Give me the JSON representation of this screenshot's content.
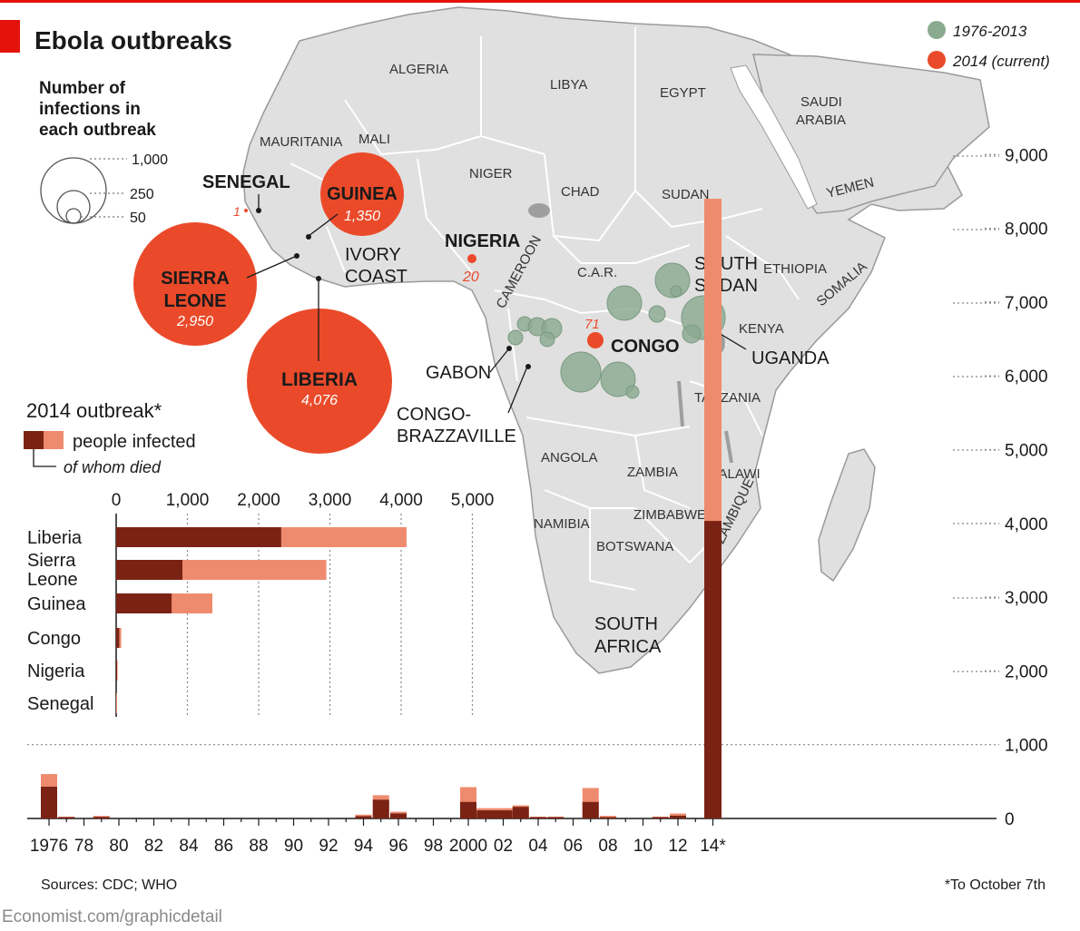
{
  "title": "Ebola outbreaks",
  "legend": {
    "historic_label": "1976-2013",
    "current_label": "2014 (current)",
    "historic_color": "#8aaa90",
    "current_color": "#ea4a2a"
  },
  "size_key": {
    "heading": [
      "Number of",
      "infections in",
      "each outbreak"
    ],
    "values": [
      "1,000",
      "250",
      "50"
    ]
  },
  "map_labels": {
    "regions": [
      "ALGERIA",
      "LIBYA",
      "EGYPT",
      "SAUDI",
      "ARABIA",
      "MAURITANIA",
      "MALI",
      "NIGER",
      "CHAD",
      "SUDAN",
      "YEMEN",
      "ETHIOPIA",
      "SOMALIA",
      "C.A.R.",
      "CAMEROON",
      "KENYA",
      "TANZANIA",
      "ANGOLA",
      "ZAMBIA",
      "MALAWI",
      "MOZAMBIQUE",
      "NAMIBIA",
      "ZIMBABWE",
      "BOTSWANA"
    ],
    "ivory_coast": [
      "IVORY",
      "COAST"
    ],
    "south_africa": [
      "SOUTH",
      "AFRICA"
    ],
    "south_sudan": [
      "SOUTH",
      "SUDAN"
    ],
    "uganda": "UGANDA",
    "gabon": "GABON",
    "congo_brazzaville": [
      "CONGO-",
      "BRAZZAVILLE"
    ]
  },
  "outbreaks_2014": [
    {
      "name": "GUINEA",
      "count": "1,350"
    },
    {
      "name_lines": [
        "SIERRA",
        "LEONE"
      ],
      "count": "2,950"
    },
    {
      "name": "LIBERIA",
      "count": "4,076"
    },
    {
      "name": "NIGERIA",
      "count": "20"
    },
    {
      "name": "CONGO",
      "count": "71"
    },
    {
      "name": "SENEGAL",
      "count": "1"
    }
  ],
  "bar_legend": {
    "heading": "2014 outbreak*",
    "infected": "people infected",
    "died": "of whom died"
  },
  "chart_data": [
    {
      "type": "bar",
      "orientation": "horizontal",
      "title": "2014 outbreak*",
      "categories": [
        "Liberia",
        "Sierra Leone",
        "Guinea",
        "Congo",
        "Nigeria",
        "Senegal"
      ],
      "category_lines": [
        [
          "Liberia"
        ],
        [
          "Sierra",
          "Leone"
        ],
        [
          "Guinea"
        ],
        [
          "Congo"
        ],
        [
          "Nigeria"
        ],
        [
          "Senegal"
        ]
      ],
      "series": [
        {
          "name": "people infected",
          "values": [
            4076,
            2950,
            1350,
            71,
            20,
            1
          ]
        },
        {
          "name": "of whom died",
          "values": [
            2316,
            930,
            778,
            43,
            8,
            0
          ]
        }
      ],
      "xlim": [
        0,
        5000
      ],
      "ticks": [
        0,
        1000,
        2000,
        3000,
        4000,
        5000
      ],
      "tick_labels": [
        "0",
        "1,000",
        "2,000",
        "3,000",
        "4,000",
        "5,000"
      ],
      "colors": {
        "infected": "#ee8b6e",
        "died": "#7a2315"
      }
    },
    {
      "type": "bar",
      "orientation": "vertical",
      "stacked": "overlay",
      "x": [
        1976,
        1977,
        1979,
        1994,
        1995,
        1996,
        2000,
        2001,
        2002,
        2003,
        2004,
        2005,
        2007,
        2008,
        2011,
        2012,
        2014
      ],
      "infected": [
        602,
        1,
        34,
        52,
        315,
        91,
        425,
        140,
        140,
        178,
        17,
        12,
        413,
        35,
        1,
        67,
        8400
      ],
      "died": [
        431,
        1,
        22,
        31,
        254,
        68,
        224,
        110,
        110,
        157,
        7,
        10,
        224,
        14,
        1,
        38,
        4033
      ],
      "ylim": [
        0,
        9000
      ],
      "y_ticks": [
        0,
        1000,
        2000,
        3000,
        4000,
        5000,
        6000,
        7000,
        8000,
        9000
      ],
      "y_tick_labels": [
        "0",
        "1,000",
        "2,000",
        "3,000",
        "4,000",
        "5,000",
        "6,000",
        "7,000",
        "8,000",
        "9,000"
      ],
      "x_tick_labels": [
        "1976",
        "78",
        "80",
        "82",
        "84",
        "86",
        "88",
        "90",
        "92",
        "94",
        "96",
        "98",
        "2000",
        "02",
        "04",
        "06",
        "08",
        "10",
        "12",
        "14*"
      ],
      "colors": {
        "infected": "#ee8b6e",
        "died": "#7a2315"
      }
    }
  ],
  "sources": "Sources: CDC; WHO",
  "footnote": "*To October 7th",
  "credit": "Economist.com/graphicdetail"
}
